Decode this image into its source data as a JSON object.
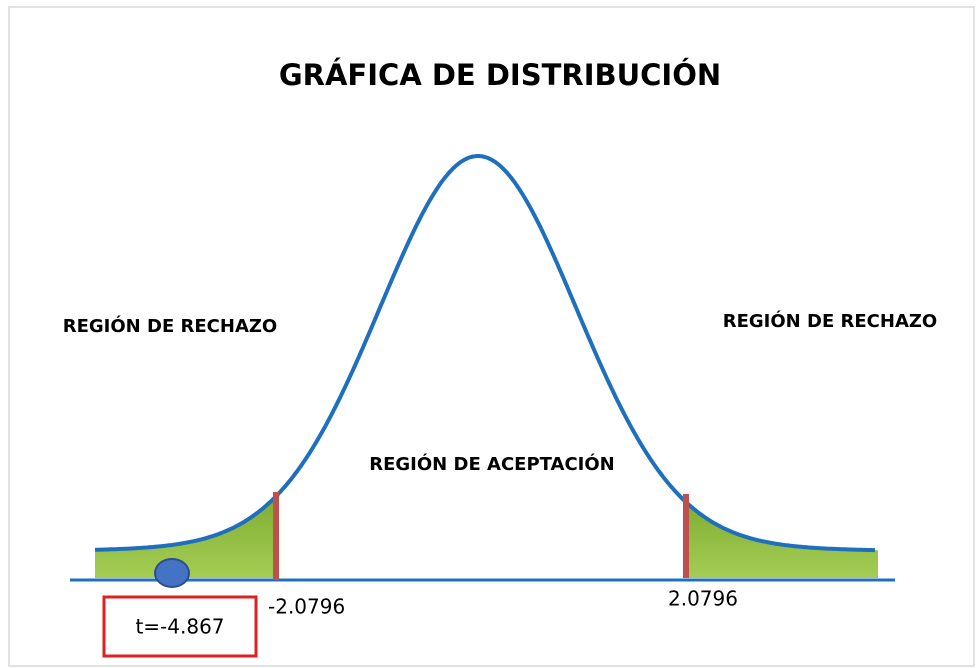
{
  "title": "GRÁFICA DE DISTRIBUCIÓN",
  "regions": {
    "left": "REGIÓN DE RECHAZO",
    "center": "REGIÓN DE ACEPTACIÓN",
    "right": "REGIÓN DE RECHAZO"
  },
  "critical_values": {
    "left": "-2.0796",
    "right": "2.0796"
  },
  "statistic": "t=-4.867"
}
